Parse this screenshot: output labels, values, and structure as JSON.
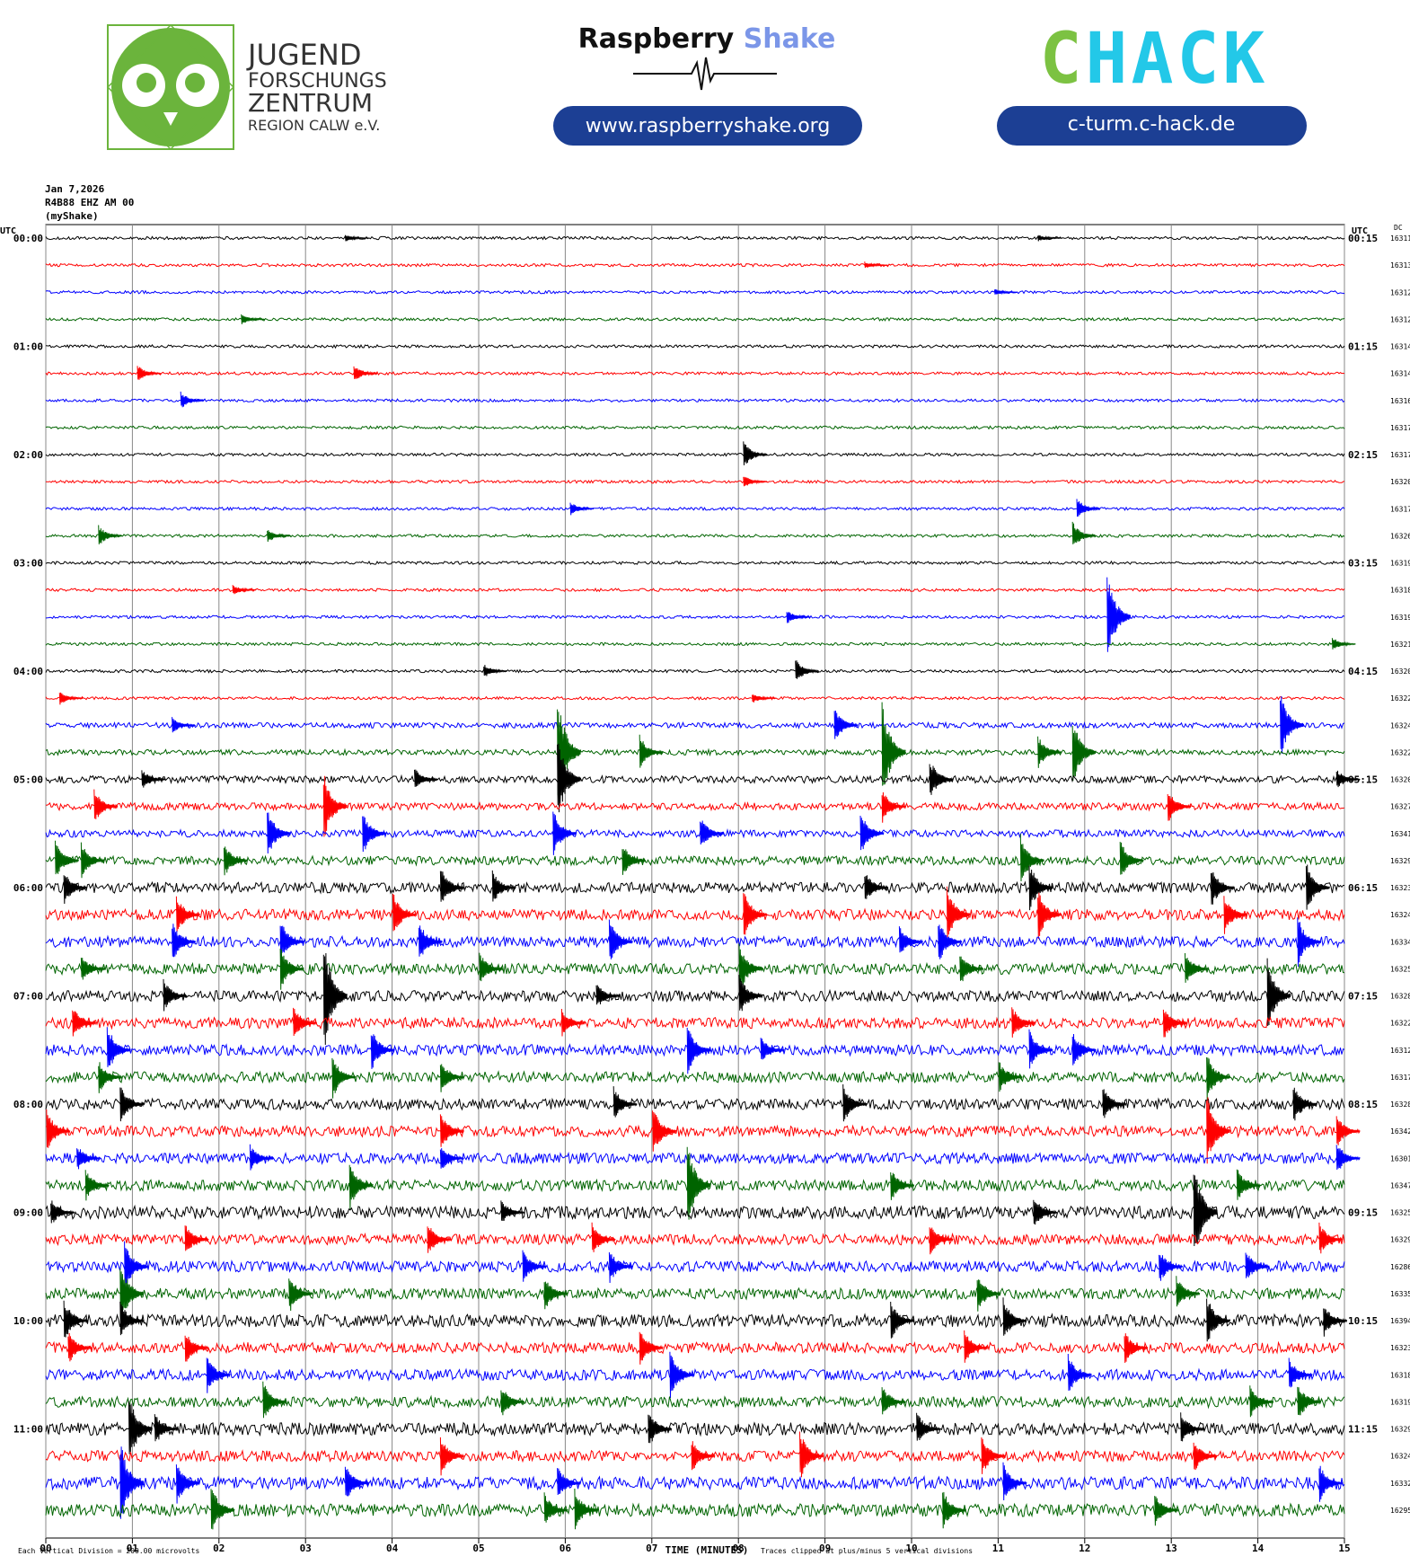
{
  "header": {
    "org_lines": [
      "JUGEND",
      "FORSCHUNGS",
      "ZENTRUM",
      "REGION CALW e.V."
    ],
    "brand1": "Raspberry",
    "brand2": "Shake",
    "url1": "www.raspberryshake.org",
    "chack": "CHACK",
    "url2": "c-turm.c-hack.de"
  },
  "chart_data": {
    "type": "helicorder",
    "info": [
      "Jan 7,2026",
      "R4B88 EHZ AM 00",
      "(myShake)"
    ],
    "left_unit": "UTC",
    "right_unit": "UTC",
    "dc_label": "DC",
    "left_labels": [
      "00:00",
      "01:00",
      "02:00",
      "03:00",
      "04:00",
      "05:00",
      "06:00",
      "07:00",
      "08:00",
      "09:00",
      "10:00",
      "11:00"
    ],
    "right_labels": [
      "00:15",
      "01:15",
      "02:15",
      "03:15",
      "04:15",
      "05:15",
      "06:15",
      "07:15",
      "08:15",
      "09:15",
      "10:15",
      "11:15"
    ],
    "xlim": [
      0,
      15
    ],
    "xticks": [
      {
        "value": 0,
        "label": "00"
      },
      {
        "value": 1,
        "label": "01"
      },
      {
        "value": 2,
        "label": "02"
      },
      {
        "value": 3,
        "label": "03"
      },
      {
        "value": 4,
        "label": "04"
      },
      {
        "value": 5,
        "label": "05"
      },
      {
        "value": 6,
        "label": "06"
      },
      {
        "value": 7,
        "label": "07"
      },
      {
        "value": 8,
        "label": "08"
      },
      {
        "value": 9,
        "label": "09"
      },
      {
        "value": 10,
        "label": "10"
      },
      {
        "value": 11,
        "label": "11"
      },
      {
        "value": 12,
        "label": "12"
      },
      {
        "value": 13,
        "label": "13"
      },
      {
        "value": 14,
        "label": "14"
      },
      {
        "value": 15,
        "label": "15"
      }
    ],
    "xlabel": "TIME (MINUTES)",
    "footnote": "Each Vertical Division = 200.00 microvolts",
    "clip_note": "Traces clipped at plus/minus 5 vertical divisions",
    "clip": 5,
    "series": [
      {
        "color": "#000000",
        "dc": 16311,
        "noise": 0.08,
        "spikes": [
          [
            3.5,
            0.2
          ],
          [
            11.5,
            0.2
          ]
        ]
      },
      {
        "color": "#ff0000",
        "dc": 16313,
        "noise": 0.08,
        "spikes": [
          [
            9.5,
            0.2
          ]
        ]
      },
      {
        "color": "#0000ff",
        "dc": 16312,
        "noise": 0.08,
        "spikes": [
          [
            11,
            0.2
          ]
        ]
      },
      {
        "color": "#006400",
        "dc": 16312,
        "noise": 0.08,
        "spikes": [
          [
            2.3,
            0.3
          ]
        ]
      },
      {
        "color": "#000000",
        "dc": 16314,
        "noise": 0.08,
        "spikes": []
      },
      {
        "color": "#ff0000",
        "dc": 16314,
        "noise": 0.08,
        "spikes": [
          [
            1.1,
            0.5
          ],
          [
            3.6,
            0.5
          ]
        ]
      },
      {
        "color": "#0000ff",
        "dc": 16316,
        "noise": 0.08,
        "spikes": [
          [
            1.6,
            0.5
          ]
        ]
      },
      {
        "color": "#006400",
        "dc": 16317,
        "noise": 0.08,
        "spikes": []
      },
      {
        "color": "#000000",
        "dc": 16317,
        "noise": 0.08,
        "spikes": [
          [
            8.1,
            0.8
          ]
        ]
      },
      {
        "color": "#ff0000",
        "dc": 16320,
        "noise": 0.08,
        "spikes": [
          [
            8.1,
            0.4
          ]
        ]
      },
      {
        "color": "#0000ff",
        "dc": 16317,
        "noise": 0.08,
        "spikes": [
          [
            6.1,
            0.4
          ],
          [
            11.95,
            0.6
          ]
        ]
      },
      {
        "color": "#006400",
        "dc": 16326,
        "noise": 0.08,
        "spikes": [
          [
            0.65,
            0.6
          ],
          [
            2.6,
            0.4
          ],
          [
            11.9,
            0.8
          ]
        ]
      },
      {
        "color": "#000000",
        "dc": 16319,
        "noise": 0.08,
        "spikes": []
      },
      {
        "color": "#ff0000",
        "dc": 16318,
        "noise": 0.08,
        "spikes": [
          [
            2.2,
            0.3
          ]
        ]
      },
      {
        "color": "#0000ff",
        "dc": 16319,
        "noise": 0.08,
        "spikes": [
          [
            8.6,
            0.4
          ],
          [
            12.3,
            2.6
          ]
        ]
      },
      {
        "color": "#006400",
        "dc": 16321,
        "noise": 0.08,
        "spikes": [
          [
            14.9,
            0.4
          ]
        ]
      },
      {
        "color": "#000000",
        "dc": 16320,
        "noise": 0.08,
        "spikes": [
          [
            5.1,
            0.4
          ],
          [
            8.7,
            0.7
          ]
        ]
      },
      {
        "color": "#ff0000",
        "dc": 16322,
        "noise": 0.08,
        "spikes": [
          [
            0.2,
            0.4
          ],
          [
            8.2,
            0.3
          ]
        ]
      },
      {
        "color": "#0000ff",
        "dc": 16324,
        "noise": 0.15,
        "spikes": [
          [
            1.5,
            0.5
          ],
          [
            9.15,
            1.0
          ],
          [
            14.3,
            2.0
          ]
        ]
      },
      {
        "color": "#006400",
        "dc": 16322,
        "noise": 0.15,
        "spikes": [
          [
            5.95,
            3.5
          ],
          [
            6.9,
            1
          ],
          [
            9.7,
            3
          ],
          [
            11.9,
            2
          ],
          [
            11.5,
            1
          ]
        ]
      },
      {
        "color": "#000000",
        "dc": 16320,
        "noise": 0.2,
        "spikes": [
          [
            1.15,
            0.6
          ],
          [
            4.3,
            0.7
          ],
          [
            5.95,
            2.5
          ],
          [
            10.25,
            1.2
          ],
          [
            14.95,
            0.6
          ]
        ]
      },
      {
        "color": "#ff0000",
        "dc": 16327,
        "noise": 0.2,
        "spikes": [
          [
            3.25,
            2
          ],
          [
            0.6,
            1
          ],
          [
            9.7,
            1
          ],
          [
            13,
            1
          ]
        ]
      },
      {
        "color": "#0000ff",
        "dc": 16341,
        "noise": 0.2,
        "spikes": [
          [
            2.6,
            1.5
          ],
          [
            3.7,
            1.3
          ],
          [
            5.9,
            1.4
          ],
          [
            7.6,
            1
          ],
          [
            9.45,
            1.3
          ]
        ]
      },
      {
        "color": "#006400",
        "dc": 16329,
        "noise": 0.25,
        "spikes": [
          [
            0.15,
            1.2
          ],
          [
            0.45,
            1.1
          ],
          [
            2.1,
            1
          ],
          [
            6.7,
            1
          ],
          [
            11.3,
            1.5
          ],
          [
            12.45,
            1.2
          ]
        ]
      },
      {
        "color": "#000000",
        "dc": 16323,
        "noise": 0.3,
        "spikes": [
          [
            0.25,
            1
          ],
          [
            4.6,
            1.3
          ],
          [
            5.2,
            1
          ],
          [
            9.5,
            1
          ],
          [
            11.4,
            1.5
          ],
          [
            13.5,
            1.2
          ],
          [
            14.6,
            1.5
          ]
        ]
      },
      {
        "color": "#ff0000",
        "dc": 16324,
        "noise": 0.3,
        "spikes": [
          [
            1.55,
            1.2
          ],
          [
            4.05,
            1.3
          ],
          [
            8.1,
            1.5
          ],
          [
            10.45,
            1.6
          ],
          [
            11.5,
            1.5
          ],
          [
            13.65,
            1.2
          ]
        ]
      },
      {
        "color": "#0000ff",
        "dc": 16334,
        "noise": 0.3,
        "spikes": [
          [
            1.5,
            1.2
          ],
          [
            2.75,
            1.3
          ],
          [
            4.35,
            1.2
          ],
          [
            6.55,
            1.3
          ],
          [
            9.9,
            1
          ],
          [
            10.35,
            1.3
          ],
          [
            14.5,
            1.5
          ]
        ]
      },
      {
        "color": "#006400",
        "dc": 16325,
        "noise": 0.3,
        "spikes": [
          [
            0.45,
            0.8
          ],
          [
            2.75,
            1.3
          ],
          [
            5.05,
            1
          ],
          [
            8.05,
            1.5
          ],
          [
            10.6,
            1
          ],
          [
            13.2,
            1
          ]
        ]
      },
      {
        "color": "#000000",
        "dc": 16328,
        "noise": 0.3,
        "spikes": [
          [
            1.4,
            1
          ],
          [
            3.25,
            3.5
          ],
          [
            6.4,
            0.8
          ],
          [
            8.05,
            1.3
          ],
          [
            14.15,
            2.3
          ]
        ]
      },
      {
        "color": "#ff0000",
        "dc": 16322,
        "noise": 0.3,
        "spikes": [
          [
            0.35,
            1
          ],
          [
            2.9,
            1
          ],
          [
            6,
            0.8
          ],
          [
            11.2,
            1
          ],
          [
            12.95,
            1
          ]
        ]
      },
      {
        "color": "#0000ff",
        "dc": 16312,
        "noise": 0.3,
        "spikes": [
          [
            0.75,
            1.5
          ],
          [
            3.8,
            1.3
          ],
          [
            7.45,
            1.5
          ],
          [
            8.3,
            0.8
          ],
          [
            11.4,
            1.2
          ],
          [
            11.9,
            1.1
          ]
        ]
      },
      {
        "color": "#006400",
        "dc": 16317,
        "noise": 0.3,
        "spikes": [
          [
            0.65,
            1
          ],
          [
            3.35,
            1.3
          ],
          [
            4.6,
            1
          ],
          [
            11.05,
            1
          ],
          [
            13.45,
            1.4
          ]
        ]
      },
      {
        "color": "#000000",
        "dc": 16328,
        "noise": 0.3,
        "spikes": [
          [
            0.9,
            1.2
          ],
          [
            6.6,
            1
          ],
          [
            9.25,
            1.2
          ],
          [
            12.25,
            1
          ],
          [
            14.45,
            1.3
          ]
        ]
      },
      {
        "color": "#ff0000",
        "dc": 16342,
        "noise": 0.3,
        "spikes": [
          [
            0.05,
            1.3
          ],
          [
            4.6,
            1.2
          ],
          [
            7.05,
            1.5
          ],
          [
            13.45,
            2.2
          ],
          [
            14.95,
            1
          ]
        ]
      },
      {
        "color": "#0000ff",
        "dc": 16301,
        "noise": 0.3,
        "spikes": [
          [
            0.4,
            0.8
          ],
          [
            2.4,
            0.8
          ],
          [
            4.6,
            0.8
          ],
          [
            14.95,
            1
          ]
        ]
      },
      {
        "color": "#006400",
        "dc": 16347,
        "noise": 0.3,
        "spikes": [
          [
            0.5,
            1
          ],
          [
            3.55,
            1.5
          ],
          [
            7.45,
            2.5
          ],
          [
            9.8,
            1
          ],
          [
            13.8,
            1
          ]
        ]
      },
      {
        "color": "#000000",
        "dc": 16325,
        "noise": 0.35,
        "spikes": [
          [
            0.1,
            0.8
          ],
          [
            5.3,
            0.7
          ],
          [
            13.3,
            3
          ],
          [
            11.45,
            1
          ]
        ]
      },
      {
        "color": "#ff0000",
        "dc": 16329,
        "noise": 0.3,
        "spikes": [
          [
            1.65,
            1
          ],
          [
            4.45,
            1
          ],
          [
            6.35,
            1
          ],
          [
            10.25,
            1
          ],
          [
            14.75,
            1
          ]
        ]
      },
      {
        "color": "#0000ff",
        "dc": 16286,
        "noise": 0.3,
        "spikes": [
          [
            0.95,
            1.5
          ],
          [
            5.55,
            1
          ],
          [
            6.55,
            1
          ],
          [
            12.9,
            1
          ],
          [
            13.9,
            1
          ]
        ]
      },
      {
        "color": "#006400",
        "dc": 16335,
        "noise": 0.3,
        "spikes": [
          [
            0.9,
            2
          ],
          [
            2.85,
            1.2
          ],
          [
            5.8,
            1
          ],
          [
            10.8,
            1.2
          ],
          [
            13.1,
            1
          ]
        ]
      },
      {
        "color": "#000000",
        "dc": 16394,
        "noise": 0.35,
        "spikes": [
          [
            0.25,
            1.3
          ],
          [
            0.9,
            1.2
          ],
          [
            9.8,
            1.2
          ],
          [
            11.1,
            1.3
          ],
          [
            13.45,
            1.5
          ],
          [
            14.8,
            1
          ]
        ]
      },
      {
        "color": "#ff0000",
        "dc": 16323,
        "noise": 0.3,
        "spikes": [
          [
            0.3,
            1
          ],
          [
            1.65,
            1
          ],
          [
            6.9,
            1.2
          ],
          [
            10.65,
            1
          ],
          [
            12.5,
            1
          ]
        ]
      },
      {
        "color": "#0000ff",
        "dc": 16318,
        "noise": 0.3,
        "spikes": [
          [
            1.9,
            1.2
          ],
          [
            7.25,
            1.5
          ],
          [
            11.85,
            1.2
          ],
          [
            14.4,
            1
          ]
        ]
      },
      {
        "color": "#006400",
        "dc": 16319,
        "noise": 0.3,
        "spikes": [
          [
            2.55,
            1.2
          ],
          [
            5.3,
            1
          ],
          [
            9.7,
            1
          ],
          [
            13.95,
            1
          ],
          [
            14.5,
            1.2
          ]
        ]
      },
      {
        "color": "#000000",
        "dc": 16329,
        "noise": 0.35,
        "spikes": [
          [
            1.0,
            2.2
          ],
          [
            1.3,
            1
          ],
          [
            7.0,
            1.2
          ],
          [
            10.1,
            1
          ],
          [
            13.15,
            1
          ]
        ]
      },
      {
        "color": "#ff0000",
        "dc": 16324,
        "noise": 0.3,
        "spikes": [
          [
            4.6,
            1.2
          ],
          [
            7.5,
            1
          ],
          [
            8.75,
            1.5
          ],
          [
            10.85,
            1.2
          ],
          [
            13.3,
            1
          ]
        ]
      },
      {
        "color": "#0000ff",
        "dc": 16332,
        "noise": 0.35,
        "spikes": [
          [
            0.9,
            2.5
          ],
          [
            1.55,
            1.3
          ],
          [
            3.5,
            1.2
          ],
          [
            5.95,
            1
          ],
          [
            11.1,
            1.2
          ],
          [
            14.75,
            1.2
          ]
        ]
      },
      {
        "color": "#006400",
        "dc": 16295,
        "noise": 0.35,
        "spikes": [
          [
            1.95,
            1.5
          ],
          [
            5.8,
            1
          ],
          [
            6.15,
            1.2
          ],
          [
            10.4,
            1.2
          ],
          [
            12.85,
            1
          ]
        ]
      }
    ]
  }
}
